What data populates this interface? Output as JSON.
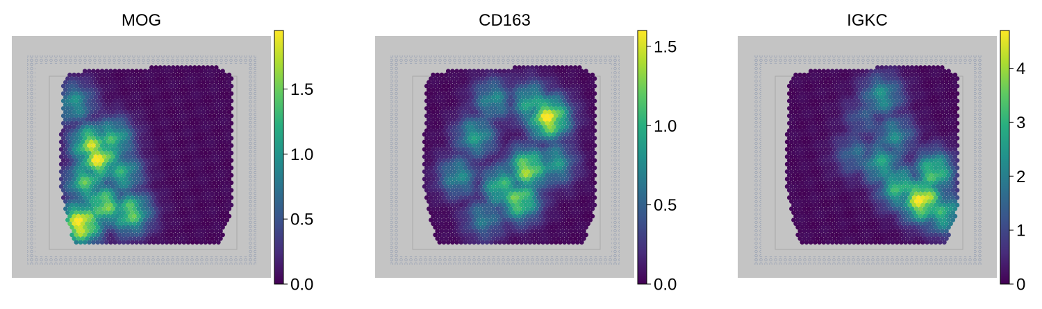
{
  "chart_data": [
    {
      "type": "heatmap",
      "title": "MOG",
      "colormap": "viridis",
      "vmin": 0.0,
      "vmax": 1.95,
      "colorbar_ticks": [
        0.0,
        0.5,
        1.0,
        1.5
      ],
      "colorbar_tick_labels": [
        "0.0",
        "0.5",
        "1.0",
        "1.5"
      ],
      "hotspots": [
        {
          "x": 0.22,
          "y": 0.52,
          "value": 1.8
        },
        {
          "x": 0.18,
          "y": 0.45,
          "value": 1.6
        },
        {
          "x": 0.3,
          "y": 0.42,
          "value": 1.2
        },
        {
          "x": 0.15,
          "y": 0.65,
          "value": 1.3
        },
        {
          "x": 0.25,
          "y": 0.78,
          "value": 1.5
        },
        {
          "x": 0.4,
          "y": 0.82,
          "value": 1.4
        },
        {
          "x": 0.12,
          "y": 0.88,
          "value": 1.9
        },
        {
          "x": 0.08,
          "y": 0.22,
          "value": 0.9
        },
        {
          "x": 0.35,
          "y": 0.6,
          "value": 1.1
        }
      ]
    },
    {
      "type": "heatmap",
      "title": "CD163",
      "colormap": "viridis",
      "vmin": 0.0,
      "vmax": 1.6,
      "colorbar_ticks": [
        0.0,
        0.5,
        1.0,
        1.5
      ],
      "colorbar_tick_labels": [
        "0.0",
        "0.5",
        "1.0",
        "1.5"
      ],
      "hotspots": [
        {
          "x": 0.72,
          "y": 0.3,
          "value": 1.5
        },
        {
          "x": 0.6,
          "y": 0.58,
          "value": 1.3
        },
        {
          "x": 0.55,
          "y": 0.75,
          "value": 1.2
        },
        {
          "x": 0.45,
          "y": 0.68,
          "value": 1.0
        },
        {
          "x": 0.3,
          "y": 0.4,
          "value": 0.8
        },
        {
          "x": 0.62,
          "y": 0.22,
          "value": 0.9
        },
        {
          "x": 0.4,
          "y": 0.2,
          "value": 0.7
        },
        {
          "x": 0.2,
          "y": 0.62,
          "value": 0.7
        },
        {
          "x": 0.75,
          "y": 0.55,
          "value": 0.8
        },
        {
          "x": 0.35,
          "y": 0.85,
          "value": 0.6
        }
      ]
    },
    {
      "type": "heatmap",
      "title": "IGKC",
      "colormap": "viridis",
      "vmin": 0,
      "vmax": 4.7,
      "colorbar_ticks": [
        0,
        1,
        2,
        3,
        4
      ],
      "colorbar_tick_labels": [
        "0",
        "1",
        "2",
        "3",
        "4"
      ],
      "hotspots": [
        {
          "x": 0.78,
          "y": 0.75,
          "value": 4.5
        },
        {
          "x": 0.65,
          "y": 0.68,
          "value": 3.0
        },
        {
          "x": 0.85,
          "y": 0.6,
          "value": 3.2
        },
        {
          "x": 0.55,
          "y": 0.55,
          "value": 2.5
        },
        {
          "x": 0.62,
          "y": 0.4,
          "value": 2.0
        },
        {
          "x": 0.55,
          "y": 0.18,
          "value": 2.2
        },
        {
          "x": 0.4,
          "y": 0.5,
          "value": 1.5
        },
        {
          "x": 0.9,
          "y": 0.82,
          "value": 2.8
        },
        {
          "x": 0.45,
          "y": 0.3,
          "value": 1.2
        }
      ]
    }
  ]
}
